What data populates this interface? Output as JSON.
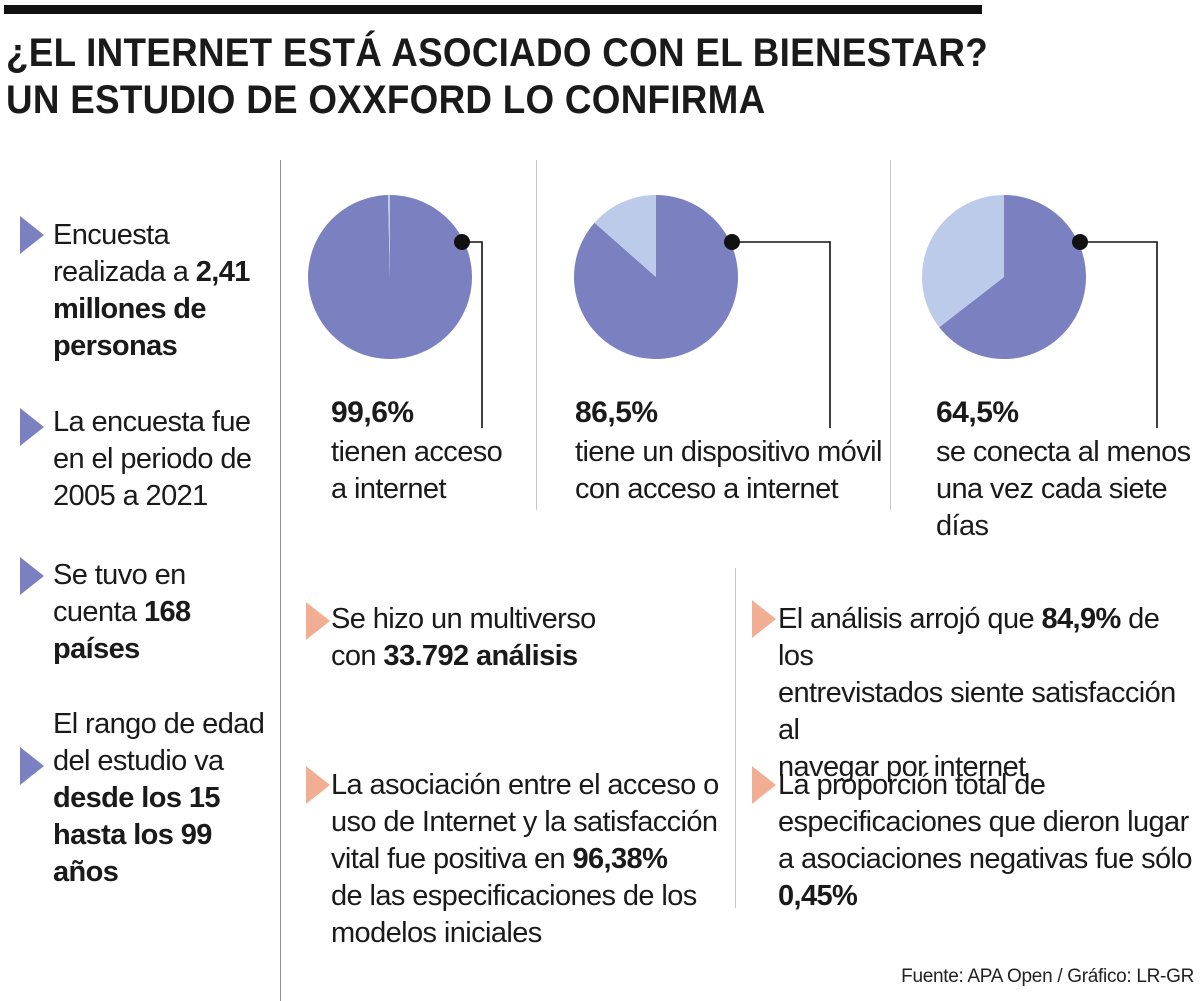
{
  "title": {
    "line1": "¿EL INTERNET ESTÁ ASOCIADO CON EL BIENESTAR?",
    "line2": "UN ESTUDIO DE OXXFORD LO CONFIRMA"
  },
  "left_facts": [
    {
      "l1": "Encuesta",
      "l2a": "realizada a ",
      "l2b": "2,41",
      "l3": "millones de",
      "l4": "personas"
    },
    {
      "l1": "La encuesta fue",
      "l2": "en el periodo de",
      "l3": "2005 a 2021"
    },
    {
      "l1": "Se tuvo en",
      "l2a": "cuenta ",
      "l2b": "168",
      "l3": "países"
    },
    {
      "l1": "El rango de edad",
      "l2": "del estudio va",
      "l3": "desde los 15",
      "l4": "hasta los 99",
      "l5": "años"
    }
  ],
  "colors": {
    "primary": "#7b80c0",
    "light": "#bccbe9",
    "bullet_purple": "#7b80c0",
    "bullet_salmon": "#f2ae93"
  },
  "chart_data": [
    {
      "type": "pie",
      "values": [
        99.6,
        0.4
      ],
      "value_label": "99,6%",
      "caption1": "tienen acceso",
      "caption2": "a internet"
    },
    {
      "type": "pie",
      "values": [
        86.5,
        13.5
      ],
      "value_label": "86,5%",
      "caption1": "tiene un dispositivo móvil",
      "caption2": "con acceso a internet"
    },
    {
      "type": "pie",
      "values": [
        64.5,
        35.5
      ],
      "value_label": "64,5%",
      "caption1": "se conecta al menos",
      "caption2": "una vez cada siete días"
    }
  ],
  "bottom_facts": {
    "multiverso": {
      "l1": "Se hizo un multiverso",
      "l2a": "con ",
      "l2b": "33.792 análisis"
    },
    "asociacion": {
      "l1": "La asociación entre el acceso o",
      "l2": "uso de Internet y la satisfacción",
      "l3a": "vital fue positiva en ",
      "l3b": "96,38%",
      "l4": "de las especificaciones de los",
      "l5": "modelos iniciales"
    },
    "analisis": {
      "l1a": "El análisis arrojó que ",
      "l1b": "84,9%",
      "l1c": " de los",
      "l2": "entrevistados siente satisfacción al",
      "l3": "navegar por internet"
    },
    "proporcion": {
      "l1": "La proporción total de",
      "l2": "especificaciones que dieron lugar",
      "l3": "a asociaciones negativas fue sólo",
      "l4": "0,45%"
    }
  },
  "source": "Fuente: APA Open / Gráfico: LR-GR"
}
